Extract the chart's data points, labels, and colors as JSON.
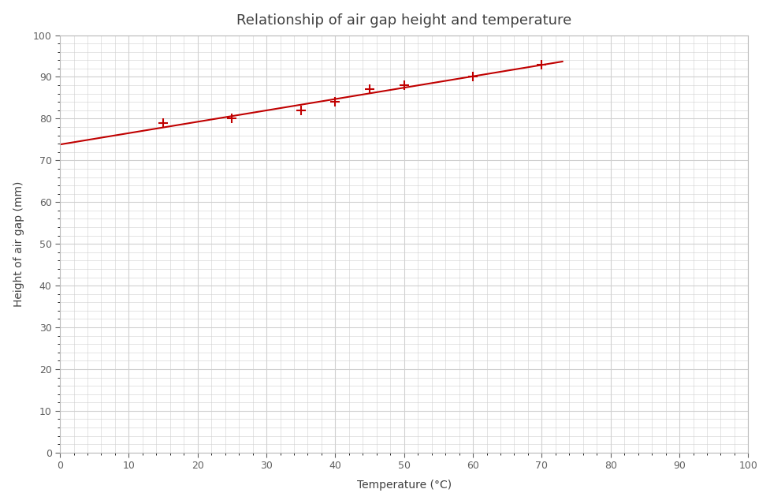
{
  "title": "Relationship of air gap height and temperature",
  "xlabel": "Temperature (°C)",
  "ylabel": "Height of air gap (mm)",
  "x_data": [
    15,
    25,
    35,
    40,
    45,
    50,
    60,
    70
  ],
  "y_data": [
    79,
    80,
    82,
    84,
    87,
    88,
    90,
    93
  ],
  "xlim": [
    0,
    100
  ],
  "ylim": [
    0,
    100
  ],
  "x_ticks": [
    0,
    10,
    20,
    30,
    40,
    50,
    60,
    70,
    80,
    90,
    100
  ],
  "y_ticks": [
    0,
    10,
    20,
    30,
    40,
    50,
    60,
    70,
    80,
    90,
    100
  ],
  "data_color": "#c00000",
  "line_color": "#c00000",
  "background_color": "#ffffff",
  "grid_color": "#d0d0d0",
  "title_fontsize": 13,
  "axis_label_fontsize": 10,
  "tick_fontsize": 9,
  "line_x_start": 0,
  "line_x_end": 73
}
